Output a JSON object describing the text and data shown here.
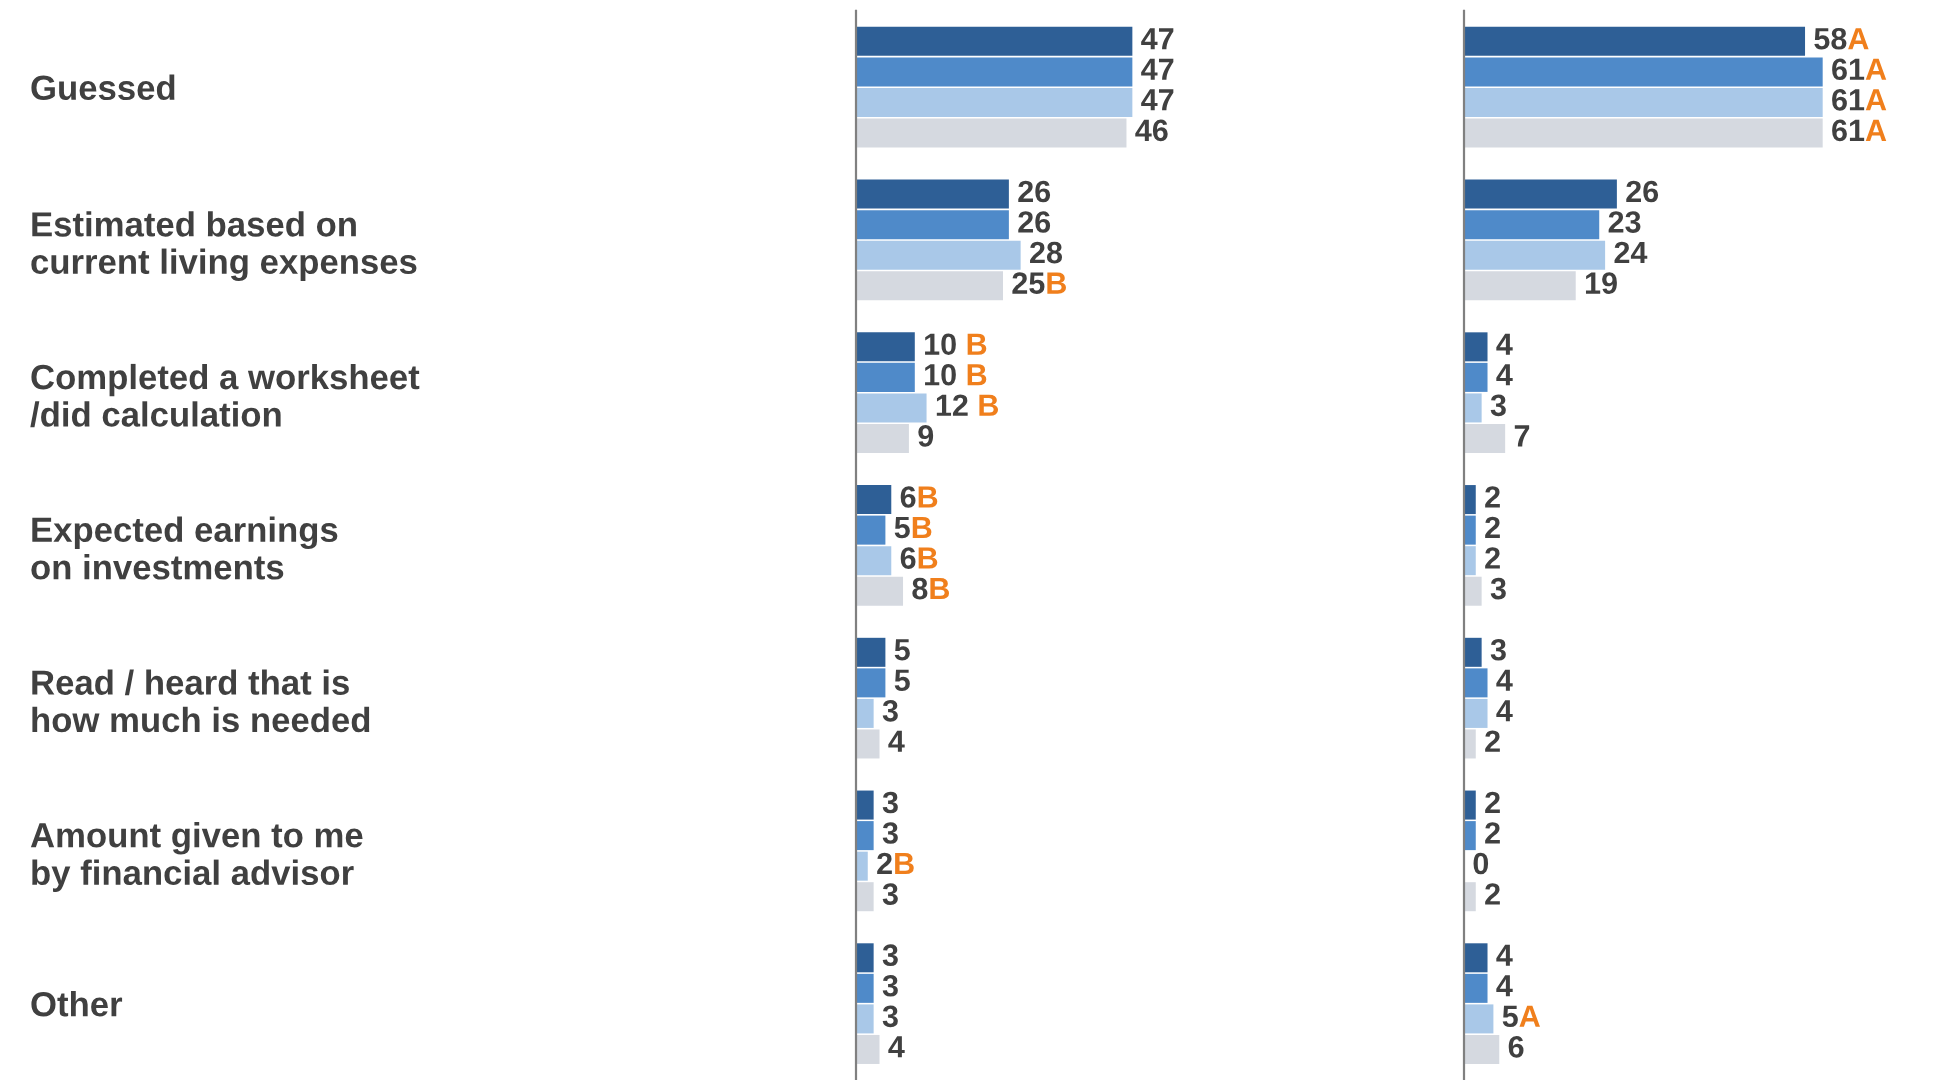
{
  "chart_data": [
    {
      "type": "bar",
      "orientation": "horizontal",
      "categories": [
        "Guessed",
        "Estimated based on\ncurrent living expenses",
        "Completed a worksheet\n/did calculation",
        "Expected earnings\non investments",
        "Read / heard that is\nhow much is needed",
        "Amount given to me\nby financial advisor",
        "Other"
      ],
      "series": [
        {
          "color": "#2e5f96",
          "values": [
            47,
            26,
            10,
            6,
            5,
            3,
            3
          ],
          "value_labels": [
            "47",
            "26",
            "10 B",
            "6B",
            "5",
            "3",
            "3"
          ]
        },
        {
          "color": "#4f8ac9",
          "values": [
            47,
            26,
            10,
            5,
            5,
            3,
            3
          ],
          "value_labels": [
            "47",
            "26",
            "10 B",
            "5B",
            "5",
            "3",
            "3"
          ]
        },
        {
          "color": "#a9c8e8",
          "values": [
            47,
            28,
            12,
            6,
            3,
            2,
            3
          ],
          "value_labels": [
            "47",
            "28",
            "12 B",
            "6B",
            "3",
            "2B",
            "3"
          ]
        },
        {
          "color": "#d5d9e0",
          "values": [
            46,
            25,
            9,
            8,
            4,
            3,
            4
          ],
          "value_labels": [
            "46",
            "25B",
            "9",
            "8B",
            "4",
            "3",
            "4"
          ]
        }
      ]
    },
    {
      "type": "bar",
      "orientation": "horizontal",
      "categories": [
        null,
        null,
        null,
        null,
        null,
        null,
        null
      ],
      "series": [
        {
          "color": "#2e5f96",
          "values": [
            58,
            26,
            4,
            2,
            3,
            2,
            4
          ],
          "value_labels": [
            "58A",
            "26",
            "4",
            "2",
            "3",
            "2",
            "4"
          ]
        },
        {
          "color": "#4f8ac9",
          "values": [
            61,
            23,
            4,
            2,
            4,
            2,
            4
          ],
          "value_labels": [
            "61A",
            "23",
            "4",
            "2",
            "4",
            "2",
            "4"
          ]
        },
        {
          "color": "#a9c8e8",
          "values": [
            61,
            24,
            3,
            2,
            4,
            0,
            5
          ],
          "value_labels": [
            "61A",
            "24",
            "3",
            "2",
            "4",
            "0",
            "5A"
          ]
        },
        {
          "color": "#d5d9e0",
          "values": [
            61,
            19,
            7,
            3,
            2,
            2,
            6
          ],
          "value_labels": [
            "61A",
            "19",
            "7",
            "3",
            "2",
            "2",
            "6"
          ]
        }
      ]
    }
  ]
}
